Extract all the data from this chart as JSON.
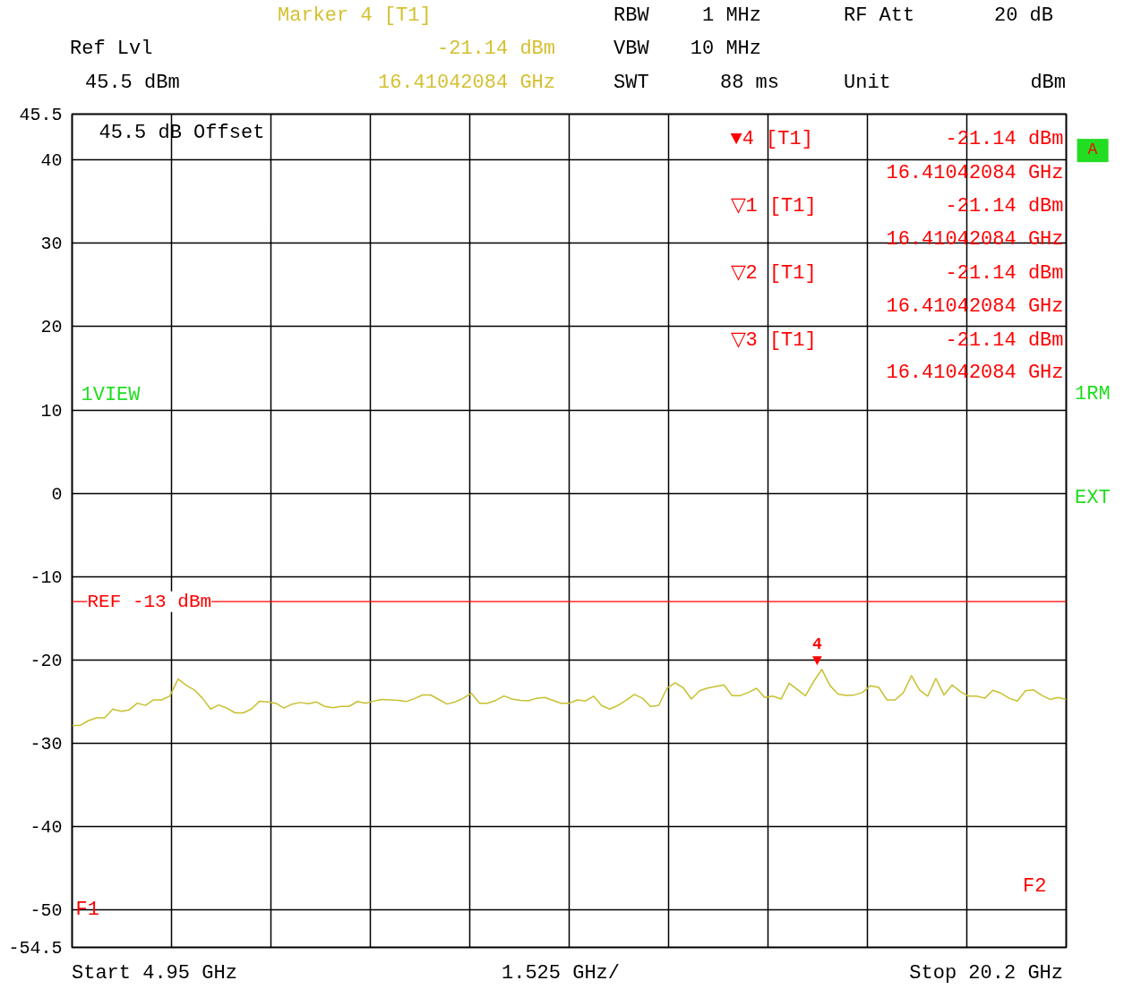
{
  "chart_data": {
    "type": "line",
    "ylim": [
      -54.5,
      45.5
    ],
    "categories": [
      null,
      null,
      null,
      null,
      null,
      null,
      null,
      null,
      null,
      null,
      null,
      null,
      null,
      null,
      null,
      null,
      null,
      null,
      null,
      null,
      null,
      null,
      null,
      null,
      null,
      null,
      null,
      null,
      null,
      null,
      null,
      null,
      null,
      null,
      null,
      null,
      null,
      null,
      null,
      null,
      null,
      null,
      null,
      null,
      null,
      null,
      null,
      null,
      null,
      null,
      null,
      null,
      null,
      null,
      null,
      null,
      null,
      null,
      null,
      null,
      null,
      null,
      null,
      null,
      null,
      null,
      null,
      null,
      null,
      null,
      null,
      null,
      null,
      null,
      null,
      null,
      null,
      null,
      null,
      null,
      null,
      null,
      null,
      null,
      null,
      null,
      null,
      null,
      null,
      null,
      null,
      null,
      null,
      null,
      null,
      null,
      null,
      null,
      null,
      null,
      null,
      null,
      null,
      null,
      null,
      null,
      null,
      null,
      null,
      null,
      null,
      null,
      null,
      null,
      null,
      null,
      null,
      null,
      null,
      null,
      null,
      null,
      null
    ],
    "yticks": [
      -54.5,
      -50,
      -40,
      -30,
      -20,
      -10,
      0,
      10,
      20,
      30,
      40,
      45.5
    ],
    "tick_labels": "y",
    "grid": true,
    "marker": "none",
    "line_style": "solid",
    "series": [
      {
        "color": "#c8c030",
        "values": [
          -27.85,
          -27.85,
          -27.3,
          -26.95,
          -26.95,
          -25.9,
          -26.17,
          -26.0,
          -25.19,
          -25.46,
          -24.8,
          -24.8,
          -24.33,
          -22.3,
          -23.04,
          -23.6,
          -24.6,
          -25.9,
          -25.4,
          -25.8,
          -26.36,
          -26.36,
          -25.9,
          -24.95,
          -25.05,
          -25.2,
          -25.78,
          -25.3,
          -25.11,
          -25.25,
          -25.05,
          -25.58,
          -25.75,
          -25.58,
          -25.58,
          -24.99,
          -25.2,
          -24.95,
          -24.75,
          -24.8,
          -24.85,
          -25.0,
          -24.65,
          -24.21,
          -24.21,
          -24.75,
          -25.3,
          -25.05,
          -24.6,
          -24.0,
          -25.2,
          -25.2,
          -24.85,
          -24.33,
          -24.7,
          -24.85,
          -24.9,
          -24.6,
          -24.5,
          -24.85,
          -25.2,
          -25.2,
          -24.8,
          -24.93,
          -24.35,
          -25.5,
          -25.9,
          -25.45,
          -24.85,
          -24.15,
          -24.6,
          -25.6,
          -25.44,
          -23.4,
          -22.75,
          -23.35,
          -24.7,
          -23.7,
          -23.38,
          -23.2,
          -23.0,
          -24.3,
          -24.28,
          -23.9,
          -23.4,
          -24.5,
          -24.35,
          -24.7,
          -22.8,
          -23.55,
          -24.3,
          -22.6,
          -21.14,
          -23.07,
          -24.1,
          -24.27,
          -24.2,
          -23.9,
          -23.1,
          -23.3,
          -24.8,
          -24.8,
          -23.96,
          -21.9,
          -23.6,
          -24.35,
          -22.22,
          -24.2,
          -23.0,
          -23.8,
          -24.35,
          -24.35,
          -24.6,
          -23.65,
          -24.0,
          -24.6,
          -24.93,
          -23.7,
          -23.6,
          -24.25,
          -24.74,
          -24.5,
          -24.74
        ]
      }
    ],
    "ref_lines": [
      {
        "axis": "y",
        "value": -13,
        "label": "REF -13 dBm",
        "color": "#ff0000"
      }
    ],
    "annotations": [
      "Ref Lvl",
      "45.5 dBm",
      "Marker 4 [T1]",
      "-21.14 dBm",
      "16.41042084 GHz",
      "RBW",
      "1 MHz",
      "VBW",
      "10 MHz",
      "SWT",
      "88 ms",
      "RF Att",
      "20 dB",
      "Unit",
      "dBm",
      "45.5 dB Offset",
      "▼4 [T1]",
      "-21.14 dBm",
      "16.41042084 GHz",
      "▽1 [T1]",
      "-21.14 dBm",
      "16.41042084 GHz",
      "▽2 [T1]",
      "-21.14 dBm",
      "16.41042084 GHz",
      "▽3 [T1]",
      "-21.14 dBm",
      "16.41042084 GHz",
      "1VIEW",
      "1RM",
      "EXT",
      "A",
      "Start 4.95 GHz",
      "1.525 GHz/",
      "Stop 20.2 GHz",
      "F1",
      "F2",
      {
        "text": "4\n▼",
        "y": -21.14
      }
    ]
  }
}
